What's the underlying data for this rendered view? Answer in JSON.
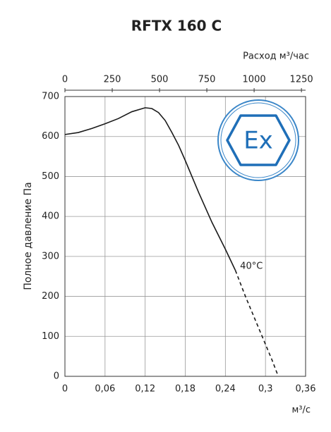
{
  "chart_data": {
    "type": "line",
    "title": "RFTX 160 C",
    "x_label": "м³/с",
    "x2_label": "Расход м³/час",
    "y_label": "Полное давление Па",
    "xlim": [
      0,
      0.36
    ],
    "xticks": [
      0,
      {
        "value": 0.06,
        "label": "0,06"
      },
      {
        "value": 0.12,
        "label": "0,12"
      },
      {
        "value": 0.18,
        "label": "0,18"
      },
      {
        "value": 0.24,
        "label": "0,24"
      },
      {
        "value": 0.3,
        "label": "0,3"
      },
      {
        "value": 0.36,
        "label": "0,36"
      }
    ],
    "x2lim": [
      0,
      1272
    ],
    "x2ticks": [
      0,
      250,
      500,
      750,
      1000,
      1250
    ],
    "ylim": [
      0,
      700
    ],
    "yticks": [
      0,
      100,
      200,
      300,
      400,
      500,
      600,
      700
    ],
    "grid": true,
    "series": [
      {
        "color": "#1a1a1a",
        "dashed": false,
        "x": [
          0,
          0.02,
          0.04,
          0.06,
          0.08,
          0.1,
          0.12,
          0.13,
          0.14,
          0.15,
          0.16,
          0.17,
          0.18,
          0.2,
          0.22,
          0.24,
          0.255
        ],
        "y": [
          605,
          610,
          620,
          632,
          645,
          662,
          672,
          670,
          660,
          640,
          610,
          578,
          540,
          460,
          385,
          318,
          265
        ]
      },
      {
        "color": "#1a1a1a",
        "dashed": true,
        "x": [
          0.255,
          0.27,
          0.29,
          0.31,
          0.318
        ],
        "y": [
          265,
          200,
          120,
          40,
          5
        ]
      }
    ],
    "annotation": {
      "text": "40°C",
      "x": 0.262,
      "y": 275
    },
    "badge": "Ex"
  }
}
